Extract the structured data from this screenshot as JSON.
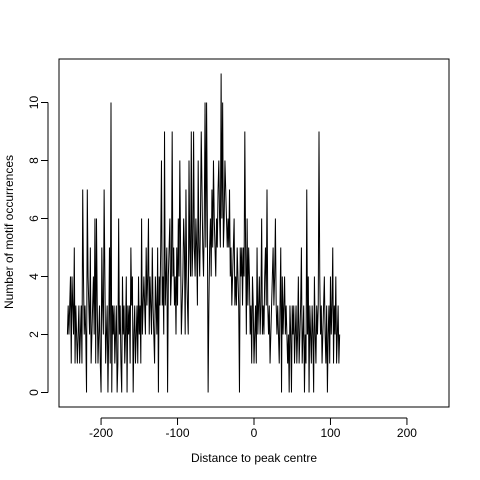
{
  "chart_data": {
    "type": "line",
    "title": "",
    "xlabel": "Distance to peak centre",
    "ylabel": "Number of motif occurrences",
    "xlim": [
      -255,
      255
    ],
    "ylim": [
      -0.5,
      11.5
    ],
    "x_ticks": [
      -200,
      -100,
      0,
      100,
      200
    ],
    "y_ticks": [
      0,
      2,
      4,
      6,
      8,
      10
    ],
    "x_tick_labels": [
      "-200",
      "-100",
      "0",
      "100",
      "200"
    ],
    "y_tick_labels": [
      "0",
      "2",
      "4",
      "6",
      "8",
      "10"
    ],
    "grid": false,
    "legend": "none",
    "line_color": "#000000",
    "x_start": -244,
    "x_step": 1,
    "series": [
      {
        "values": [
          2,
          3,
          2,
          3,
          4,
          1,
          4,
          3,
          2,
          5,
          1,
          3,
          2,
          1,
          2,
          3,
          1,
          2,
          3,
          1,
          7,
          4,
          2,
          3,
          2,
          0,
          7,
          4,
          3,
          2,
          5,
          1,
          2,
          3,
          4,
          2,
          6,
          1,
          6,
          3,
          1,
          2,
          3,
          1,
          0,
          5,
          3,
          2,
          7,
          4,
          1,
          2,
          3,
          0,
          2,
          5,
          1,
          10,
          0,
          3,
          2,
          3,
          1,
          2,
          3,
          0,
          1,
          6,
          2,
          3,
          1,
          0,
          4,
          2,
          3,
          1,
          2,
          4,
          0,
          3,
          2,
          3,
          1,
          5,
          3,
          4,
          0,
          2,
          3,
          1,
          2,
          3,
          1,
          4,
          2,
          3,
          1,
          6,
          2,
          3,
          4,
          3,
          2,
          5,
          3,
          4,
          6,
          2,
          4,
          3,
          2,
          5,
          3,
          2,
          1,
          4,
          3,
          2,
          5,
          0,
          4,
          3,
          5,
          8,
          3,
          4,
          2,
          9,
          3,
          4,
          5,
          0,
          4,
          5,
          6,
          3,
          4,
          9,
          4,
          5,
          3,
          4,
          2,
          5,
          3,
          6,
          4,
          8,
          5,
          2,
          3,
          4,
          6,
          5,
          2,
          7,
          4,
          3,
          2,
          8,
          5,
          4,
          9,
          4,
          5,
          9,
          5,
          4,
          6,
          5,
          3,
          8,
          5,
          4,
          6,
          9,
          7,
          5,
          4,
          6,
          10,
          5,
          10,
          6,
          0,
          3,
          5,
          6,
          4,
          7,
          5,
          8,
          6,
          5,
          4,
          6,
          5,
          7,
          8,
          6,
          5,
          11,
          6,
          10,
          5,
          6,
          8,
          7,
          6,
          5,
          6,
          5,
          7,
          4,
          5,
          3,
          4,
          5,
          6,
          3,
          4,
          3,
          5,
          4,
          3,
          0,
          5,
          4,
          5,
          3,
          5,
          4,
          9,
          5,
          2,
          6,
          3,
          5,
          4,
          2,
          3,
          1,
          4,
          3,
          1,
          2,
          3,
          1,
          5,
          2,
          3,
          4,
          2,
          3,
          6,
          2,
          3,
          2,
          4,
          5,
          3,
          7,
          3,
          2,
          3,
          1,
          2,
          3,
          4,
          5,
          3,
          4,
          6,
          3,
          2,
          3,
          2,
          1,
          3,
          5,
          0,
          4,
          2,
          3,
          4,
          2,
          3,
          2,
          1,
          2,
          0,
          3,
          2,
          0,
          3,
          2,
          3,
          1,
          2,
          3,
          1,
          2,
          4,
          1,
          2,
          3,
          5,
          1,
          2,
          3,
          0,
          2,
          1,
          7,
          2,
          4,
          0,
          3,
          2,
          1,
          3,
          2,
          0,
          4,
          2,
          1,
          3,
          2,
          3,
          9,
          4,
          2,
          3,
          1,
          2,
          3,
          4,
          2,
          1,
          3,
          0,
          2,
          3,
          1,
          4,
          2,
          3,
          5,
          1,
          3,
          2,
          4,
          1,
          2,
          3,
          1,
          2
        ]
      }
    ]
  }
}
